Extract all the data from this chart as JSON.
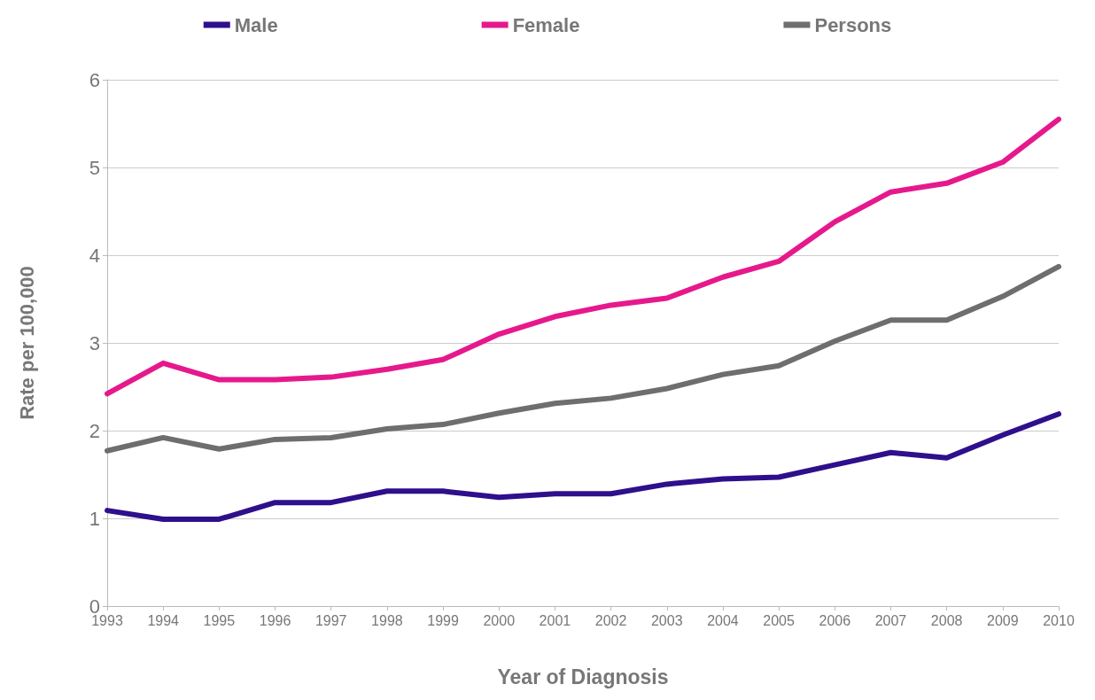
{
  "chart_data": {
    "type": "line",
    "xlabel": "Year of Diagnosis",
    "ylabel": "Rate per 100,000",
    "categories": [
      "1993",
      "1994",
      "1995",
      "1996",
      "1997",
      "1998",
      "1999",
      "2000",
      "2001",
      "2002",
      "2003",
      "2004",
      "2005",
      "2006",
      "2007",
      "2008",
      "2009",
      "2010"
    ],
    "series": [
      {
        "name": "Male",
        "color": "#2e0f8c",
        "values": [
          1.09,
          0.99,
          0.99,
          1.18,
          1.18,
          1.31,
          1.31,
          1.24,
          1.28,
          1.28,
          1.39,
          1.45,
          1.47,
          1.61,
          1.75,
          1.69,
          1.95,
          2.19
        ]
      },
      {
        "name": "Female",
        "color": "#e6198c",
        "values": [
          2.42,
          2.77,
          2.58,
          2.58,
          2.61,
          2.7,
          2.81,
          3.1,
          3.3,
          3.43,
          3.51,
          3.75,
          3.93,
          4.38,
          4.72,
          4.82,
          5.06,
          5.55
        ]
      },
      {
        "name": "Persons",
        "color": "#6e6e6e",
        "values": [
          1.77,
          1.92,
          1.79,
          1.9,
          1.92,
          2.02,
          2.07,
          2.2,
          2.31,
          2.37,
          2.48,
          2.64,
          2.74,
          3.02,
          3.26,
          3.26,
          3.53,
          3.87
        ]
      }
    ],
    "ylim": [
      0,
      6
    ],
    "yticks": [
      0,
      1,
      2,
      3,
      4,
      5,
      6
    ],
    "grid": "y",
    "legend": "top",
    "marker": "none",
    "line_style": "solid"
  }
}
